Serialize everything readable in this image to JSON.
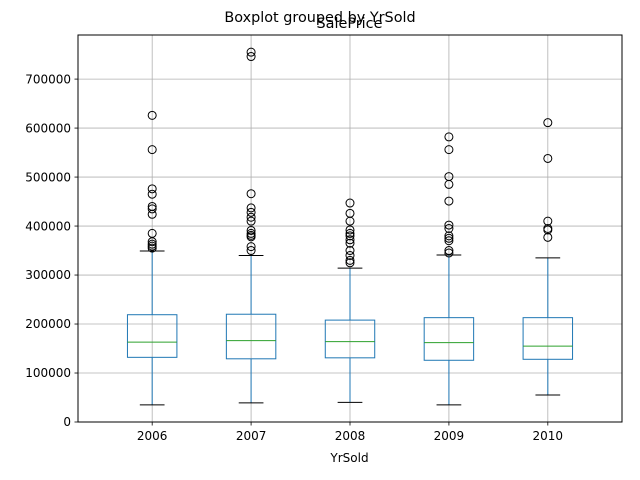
{
  "chart_data": {
    "type": "boxplot",
    "suptitle": "Boxplot grouped by YrSold",
    "title": "SalePrice",
    "xlabel": "YrSold",
    "ylabel": "",
    "ylim": [
      0,
      790000
    ],
    "y_ticks": [
      0,
      100000,
      200000,
      300000,
      400000,
      500000,
      600000,
      700000
    ],
    "y_tick_labels": [
      "0",
      "100000",
      "200000",
      "300000",
      "400000",
      "500000",
      "600000",
      "700000"
    ],
    "grid": true,
    "colors": {
      "box": "#1f77b4",
      "median": "#2ca02c",
      "whisker": "#1f77b4",
      "cap": "#000000",
      "outlier": "#000000",
      "grid": "#b0b0b0"
    },
    "categories": [
      "2006",
      "2007",
      "2008",
      "2009",
      "2010"
    ],
    "boxes": [
      {
        "q1": 132000,
        "median": 163000,
        "q3": 219000,
        "whisker_low": 35000,
        "whisker_high": 349000,
        "outliers": [
          355000,
          359000,
          363000,
          368000,
          385000,
          424000,
          435000,
          440000,
          465000,
          476000,
          556000,
          626000
        ]
      },
      {
        "q1": 129000,
        "median": 166000,
        "q3": 220000,
        "whisker_low": 39000,
        "whisker_high": 340000,
        "outliers": [
          350000,
          358000,
          378000,
          381000,
          385000,
          391000,
          410000,
          418000,
          428000,
          437000,
          466000,
          746000,
          755000
        ]
      },
      {
        "q1": 131000,
        "median": 164000,
        "q3": 208000,
        "whisker_low": 40000,
        "whisker_high": 314000,
        "outliers": [
          325000,
          330000,
          340000,
          350000,
          365000,
          372000,
          380000,
          385000,
          392000,
          410000,
          426000,
          447000
        ]
      },
      {
        "q1": 126000,
        "median": 162000,
        "q3": 213000,
        "whisker_low": 35000,
        "whisker_high": 341000,
        "outliers": [
          345000,
          350000,
          370000,
          375000,
          380000,
          395000,
          402000,
          451000,
          485000,
          501000,
          556000,
          582000
        ]
      },
      {
        "q1": 128000,
        "median": 155000,
        "q3": 213000,
        "whisker_low": 55000,
        "whisker_high": 335000,
        "outliers": [
          377000,
          392000,
          395000,
          410000,
          538000,
          611000
        ]
      }
    ]
  }
}
